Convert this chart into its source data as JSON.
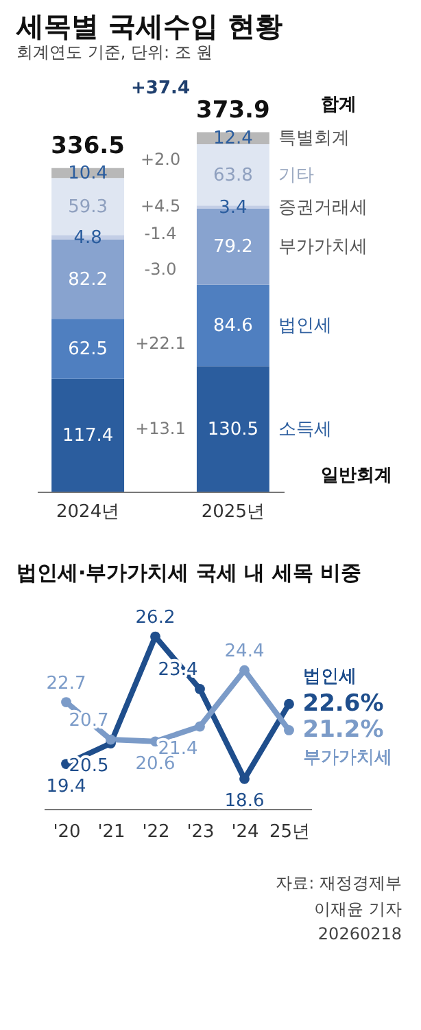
{
  "chart_data": [
    {
      "type": "bar",
      "title": "세목별 국세수입 현황",
      "subtitle": "회계연도 기준, 단위: 조 원",
      "categories": [
        "2024년",
        "2025년"
      ],
      "stacked": true,
      "data_labels": true,
      "tick_labels": "x",
      "legend": false,
      "series": [
        {
          "name": "소득세",
          "color": "#2b5d9e",
          "values": [
            117.4,
            130.5
          ]
        },
        {
          "name": "법인세",
          "color": "#4f7fc0",
          "values": [
            62.5,
            84.6
          ]
        },
        {
          "name": "부가가치세",
          "color": "#88a3cf",
          "values": [
            82.2,
            79.2
          ]
        },
        {
          "name": "증권거래세",
          "color": "#c3cee6",
          "values": [
            4.8,
            3.4
          ]
        },
        {
          "name": "기타",
          "color": "#dfe6f2",
          "values": [
            59.3,
            63.8
          ]
        },
        {
          "name": "특별회계",
          "color": "#b8b8b8",
          "values": [
            10.4,
            12.4
          ]
        }
      ],
      "totals": [
        "336.5",
        "373.9"
      ],
      "annotations": [
        "합계",
        "일반회계",
        "+37.4",
        "+2.0",
        "+4.5",
        "-1.4",
        "-3.0",
        "+22.1",
        "+13.1"
      ]
    },
    {
      "type": "line",
      "title": "법인세·부가가치세 국세 내 세목 비중",
      "categories": [
        "'20",
        "'21",
        "'22",
        "'23",
        "'24",
        "25년"
      ],
      "marker": "circle",
      "line_style": "solid",
      "tick_labels": "x",
      "legend": false,
      "series": [
        {
          "name": "법인세",
          "color": "#1f4e8c",
          "values": [
            19.4,
            20.5,
            26.2,
            23.4,
            18.6,
            22.6
          ],
          "value_labels": [
            "19.4",
            "20.5",
            "26.2",
            "23.4",
            "18.6",
            "22.6%"
          ]
        },
        {
          "name": "부가가치세",
          "color": "#7b9bc8",
          "values": [
            22.7,
            20.7,
            20.6,
            21.4,
            24.4,
            21.2
          ],
          "value_labels": [
            "22.7",
            "20.7",
            "20.6",
            "21.4",
            "24.4",
            "21.2%"
          ]
        }
      ],
      "annotations": [
        "자료: 재정경제부",
        "이재윤 기자",
        "20260218"
      ]
    }
  ]
}
